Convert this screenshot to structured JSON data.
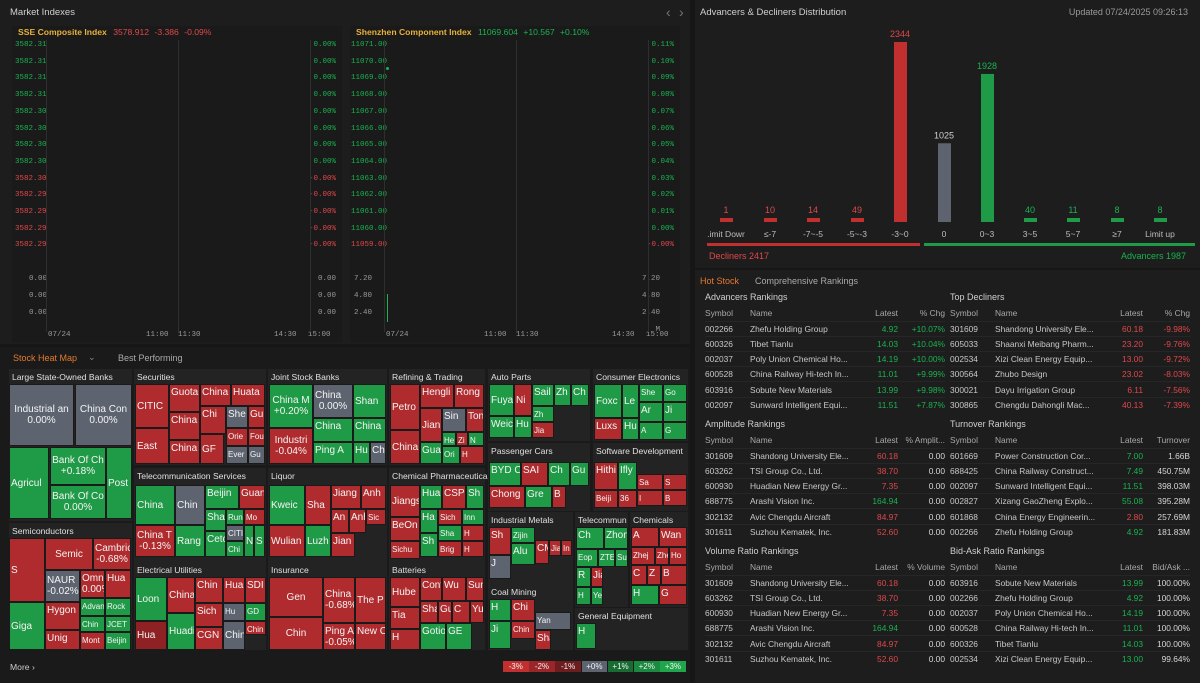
{
  "header": {
    "title": "Market Indexes",
    "nav_prev": "‹",
    "nav_next": "›"
  },
  "sse": {
    "name": "SSE Composite Index",
    "value": "3578.912",
    "change": "-3.386",
    "pct": "-0.09%",
    "y_left": [
      "3582.31",
      "3582.31",
      "3582.31",
      "3582.31",
      "3582.30",
      "3582.30",
      "3582.30",
      "3582.30",
      "3582.30",
      "3582.29",
      "3582.29",
      "3582.29",
      "3582.29"
    ],
    "y_right": [
      "0.00%",
      "0.00%",
      "0.00%",
      "0.00%",
      "0.00%",
      "0.00%",
      "0.00%",
      "0.00%",
      "-0.00%",
      "-0.00%",
      "-0.00%",
      "-0.00%",
      "-0.00%"
    ],
    "vol_left": [
      "0.00",
      "0.00",
      "0.00"
    ],
    "vol_right": [
      "0.00",
      "0.00",
      "0.00"
    ],
    "x": [
      "07/24",
      "11:00",
      "11:30",
      "14:30",
      "15:00"
    ]
  },
  "szse": {
    "name": "Shenzhen Component Index",
    "value": "11069.604",
    "change": "+10.567",
    "pct": "+0.10%",
    "y_left": [
      "11071.00",
      "11070.00",
      "11069.00",
      "11068.00",
      "11067.00",
      "11066.00",
      "11065.00",
      "11064.00",
      "11063.00",
      "11062.00",
      "11061.00",
      "11060.00",
      "11059.00"
    ],
    "y_right": [
      "0.11%",
      "0.10%",
      "0.09%",
      "0.08%",
      "0.07%",
      "0.06%",
      "0.05%",
      "0.04%",
      "0.03%",
      "0.02%",
      "0.01%",
      "0.00%",
      "-0.00%"
    ],
    "vol_left": [
      "7.20",
      "4.80",
      "2.40"
    ],
    "vol_right": [
      "7.20",
      "4.80",
      "2.40",
      "M"
    ],
    "x": [
      "07/24",
      "11:00",
      "11:30",
      "14:30",
      "15:00"
    ]
  },
  "distribution": {
    "title": "Advancers & Decliners Distribution",
    "updated": "Updated 07/24/2025 09:26:13",
    "decliners": "Decliners 2417",
    "advancers": "Advancers 1987",
    "colors": {
      "down": "#c1302f",
      "flat": "#5d6470",
      "up": "#1f9a46"
    }
  },
  "chart_data": {
    "type": "bar",
    "categories": [
      ".imit Dowr",
      "≤-7",
      "-7~-5",
      "-5~-3",
      "-3~0",
      "0",
      "0~3",
      "3~5",
      "5~7",
      "≥7",
      "Limit up"
    ],
    "values": [
      1,
      10,
      14,
      49,
      2344,
      1025,
      1928,
      40,
      11,
      8,
      8
    ]
  },
  "hot": {
    "tab1": "Hot Stock",
    "tab2": "Comprehensive Rankings"
  },
  "rankings": [
    {
      "title": "Advancers Rankings",
      "cols": [
        "Symbol",
        "Name",
        "Latest",
        "% Chg"
      ],
      "rows": [
        [
          "002266",
          "Zhefu Holding Group",
          "4.92",
          "+10.07%"
        ],
        [
          "600326",
          "Tibet Tianlu",
          "14.03",
          "+10.04%"
        ],
        [
          "002037",
          "Poly Union Chemical Ho...",
          "14.19",
          "+10.00%"
        ],
        [
          "600528",
          "China Railway Hi-tech In...",
          "11.01",
          "+9.99%"
        ],
        [
          "603916",
          "Sobute New Materials",
          "13.99",
          "+9.98%"
        ],
        [
          "002097",
          "Sunward Intelligent Equi...",
          "11.51",
          "+7.87%"
        ]
      ]
    },
    {
      "title": "Top Decliners",
      "cols": [
        "Symbol",
        "Name",
        "Latest",
        "% Chg"
      ],
      "rows": [
        [
          "301609",
          "Shandong University Ele...",
          "60.18",
          "-9.98%"
        ],
        [
          "605033",
          "Shaanxi Meibang Pharm...",
          "23.20",
          "-9.76%"
        ],
        [
          "002534",
          "Xizi Clean Energy Equip...",
          "13.00",
          "-9.72%"
        ],
        [
          "300564",
          "Zhubo Design",
          "23.02",
          "-8.03%"
        ],
        [
          "300021",
          "Dayu Irrigation Group",
          "6.11",
          "-7.56%"
        ],
        [
          "300865",
          "Chengdu Dahongli Mac...",
          "40.13",
          "-7.39%"
        ]
      ]
    },
    {
      "title": "Amplitude Rankings",
      "cols": [
        "Symbol",
        "Name",
        "Latest",
        "% Amplit..."
      ],
      "rows": [
        [
          "301609",
          "Shandong University Ele...",
          "60.18",
          "0.00"
        ],
        [
          "603262",
          "TSI Group Co., Ltd.",
          "38.70",
          "0.00"
        ],
        [
          "600930",
          "Huadian New Energy Gr...",
          "7.35",
          "0.00"
        ],
        [
          "688775",
          "Arashi Vision Inc.",
          "164.94",
          "0.00"
        ],
        [
          "302132",
          "Avic Chengdu Aircraft",
          "84.97",
          "0.00"
        ],
        [
          "301611",
          "Suzhou Kematek, Inc.",
          "52.60",
          "0.00"
        ]
      ]
    },
    {
      "title": "Turnover Rankings",
      "cols": [
        "Symbol",
        "Name",
        "Latest",
        "Turnover"
      ],
      "rows": [
        [
          "601669",
          "Power Construction Cor...",
          "7.00",
          "1.66B"
        ],
        [
          "688425",
          "China Railway Construct...",
          "7.49",
          "450.75M"
        ],
        [
          "002097",
          "Sunward Intelligent Equi...",
          "11.51",
          "398.03M"
        ],
        [
          "002827",
          "Xizang GaoZheng Explo...",
          "55.08",
          "395.28M"
        ],
        [
          "601868",
          "China Energy Engineerin...",
          "2.80",
          "257.69M"
        ],
        [
          "002266",
          "Zhefu Holding Group",
          "4.92",
          "181.83M"
        ]
      ]
    },
    {
      "title": "Volume Ratio Rankings",
      "cols": [
        "Symbol",
        "Name",
        "Latest",
        "% Volume"
      ],
      "rows": [
        [
          "301609",
          "Shandong University Ele...",
          "60.18",
          "0.00"
        ],
        [
          "603262",
          "TSI Group Co., Ltd.",
          "38.70",
          "0.00"
        ],
        [
          "600930",
          "Huadian New Energy Gr...",
          "7.35",
          "0.00"
        ],
        [
          "688775",
          "Arashi Vision Inc.",
          "164.94",
          "0.00"
        ],
        [
          "302132",
          "Avic Chengdu Aircraft",
          "84.97",
          "0.00"
        ],
        [
          "301611",
          "Suzhou Kematek, Inc.",
          "52.60",
          "0.00"
        ]
      ]
    },
    {
      "title": "Bid-Ask Ratio Rankings",
      "cols": [
        "Symbol",
        "Name",
        "Latest",
        "Bid/Ask ..."
      ],
      "rows": [
        [
          "603916",
          "Sobute New Materials",
          "13.99",
          "100.00%"
        ],
        [
          "002266",
          "Zhefu Holding Group",
          "4.92",
          "100.00%"
        ],
        [
          "002037",
          "Poly Union Chemical Ho...",
          "14.19",
          "100.00%"
        ],
        [
          "600528",
          "China Railway Hi-tech In...",
          "11.01",
          "100.00%"
        ],
        [
          "600326",
          "Tibet Tianlu",
          "14.03",
          "100.00%"
        ],
        [
          "002534",
          "Xizi Clean Energy Equip...",
          "13.00",
          "99.64%"
        ]
      ]
    }
  ],
  "heatmap": {
    "tab1": "Stock Heat Map",
    "tab2": "Best Performing",
    "more": "More",
    "legend": [
      "-3%",
      "-2%",
      "-1%",
      "+0%",
      "+1%",
      "+2%",
      "+3%"
    ],
    "sectors": [
      "Large State-Owned Banks",
      "Securities",
      "Joint Stock Banks",
      "Refining & Trading",
      "Auto Parts",
      "Consumer Electronics",
      "Telecommunication Services",
      "Liquor",
      "Chemical Pharmaceutica",
      "Passenger Cars",
      "Software Development",
      "Semiconductors",
      "Electrical Utilities",
      "Insurance",
      "Batteries",
      "Industrial Metals",
      "Telecommun",
      "Chemicals",
      "Coal Mining",
      "General Equipment"
    ],
    "tiles": [
      [
        "Industrial an",
        "0.00%"
      ],
      [
        "China Con",
        "0.00%"
      ],
      [
        "Agricul",
        ""
      ],
      [
        "Bank Of Ch",
        "+0.18%"
      ],
      [
        "Post",
        ""
      ],
      [
        "Bank Of Co",
        "0.00%"
      ],
      [
        "CITIC",
        ""
      ],
      [
        "Guota",
        ""
      ],
      [
        "China",
        ""
      ],
      [
        "Huata",
        ""
      ],
      [
        "China",
        ""
      ],
      [
        "Chi",
        ""
      ],
      [
        "She",
        ""
      ],
      [
        "Gu",
        ""
      ],
      [
        "East",
        ""
      ],
      [
        "China",
        ""
      ],
      [
        "GF",
        ""
      ],
      [
        "Orie",
        ""
      ],
      [
        "Fou",
        ""
      ],
      [
        "Ever",
        ""
      ],
      [
        "Gu",
        ""
      ],
      [
        "China M",
        "+0.20%"
      ],
      [
        "China",
        "0.00%"
      ],
      [
        "Shan",
        ""
      ],
      [
        "Industri",
        "-0.04%"
      ],
      [
        "China",
        ""
      ],
      [
        "China",
        ""
      ],
      [
        "Ping A",
        ""
      ],
      [
        "Hu",
        ""
      ],
      [
        "Chi",
        ""
      ],
      [
        "Petro",
        ""
      ],
      [
        "Hengli",
        ""
      ],
      [
        "Rong",
        ""
      ],
      [
        "Jian",
        ""
      ],
      [
        "Sin",
        ""
      ],
      [
        "Ton",
        ""
      ],
      [
        "China",
        ""
      ],
      [
        "He",
        ""
      ],
      [
        "Zi",
        ""
      ],
      [
        "N",
        ""
      ],
      [
        "Gua",
        ""
      ],
      [
        "Ori",
        ""
      ],
      [
        "H",
        ""
      ],
      [
        "Fuya",
        ""
      ],
      [
        "Ni",
        ""
      ],
      [
        "Sail",
        ""
      ],
      [
        "Zh",
        ""
      ],
      [
        "Ch",
        ""
      ],
      [
        "Zh",
        ""
      ],
      [
        "Weic",
        ""
      ],
      [
        "Hu",
        ""
      ],
      [
        "Jia",
        ""
      ],
      [
        "Foxc",
        ""
      ],
      [
        "Le",
        ""
      ],
      [
        "She",
        ""
      ],
      [
        "Go",
        ""
      ],
      [
        "Ar",
        ""
      ],
      [
        "Luxs",
        ""
      ],
      [
        "Hu",
        ""
      ],
      [
        "A",
        ""
      ],
      [
        "Ji",
        ""
      ],
      [
        "G",
        ""
      ],
      [
        "China",
        ""
      ],
      [
        "Chin",
        ""
      ],
      [
        "Beijin",
        ""
      ],
      [
        "Guan",
        ""
      ],
      [
        "Sha",
        ""
      ],
      [
        "RunJ",
        ""
      ],
      [
        "Mo",
        ""
      ],
      [
        "China T",
        "-0.13%"
      ],
      [
        "Rang",
        ""
      ],
      [
        "Cetc",
        ""
      ],
      [
        "CITI",
        ""
      ],
      [
        "Chi",
        ""
      ],
      [
        "N",
        ""
      ],
      [
        "S",
        ""
      ],
      [
        "Kweic",
        ""
      ],
      [
        "Sha",
        ""
      ],
      [
        "Jiang",
        ""
      ],
      [
        "Anh",
        ""
      ],
      [
        "An",
        ""
      ],
      [
        "Anh",
        ""
      ],
      [
        "Sic",
        ""
      ],
      [
        "Wulian",
        ""
      ],
      [
        "Luzh",
        ""
      ],
      [
        "Jian",
        ""
      ],
      [
        "Jiangs",
        ""
      ],
      [
        "Hua",
        ""
      ],
      [
        "CSP",
        ""
      ],
      [
        "Sh",
        ""
      ],
      [
        "BeOn",
        ""
      ],
      [
        "Ha",
        ""
      ],
      [
        "Sich",
        ""
      ],
      [
        "Inn",
        ""
      ],
      [
        "Sha",
        ""
      ],
      [
        "H",
        ""
      ],
      [
        "Sichu",
        ""
      ],
      [
        "Sh",
        ""
      ],
      [
        "Brig",
        ""
      ],
      [
        "H",
        ""
      ],
      [
        "BYD C",
        ""
      ],
      [
        "SAI",
        ""
      ],
      [
        "Ch",
        ""
      ],
      [
        "Gu",
        ""
      ],
      [
        "Chong",
        ""
      ],
      [
        "Gre",
        ""
      ],
      [
        "B",
        ""
      ],
      [
        "Hithi",
        ""
      ],
      [
        "Ifly",
        ""
      ],
      [
        "Sa",
        ""
      ],
      [
        "S",
        ""
      ],
      [
        "I",
        ""
      ],
      [
        "Beiji",
        ""
      ],
      [
        "36",
        ""
      ],
      [
        "B",
        ""
      ],
      [
        "S",
        ""
      ],
      [
        "Semic",
        ""
      ],
      [
        "Cambric",
        "-0.68%"
      ],
      [
        "NAUR",
        "-0.02%"
      ],
      [
        "Omni",
        "0.00%"
      ],
      [
        "Hua",
        ""
      ],
      [
        "Giga",
        ""
      ],
      [
        "Hygon",
        ""
      ],
      [
        "Advan",
        ""
      ],
      [
        "Rock",
        ""
      ],
      [
        "Chin",
        ""
      ],
      [
        "JCET",
        ""
      ],
      [
        "Unig",
        ""
      ],
      [
        "Mont",
        ""
      ],
      [
        "Beijin",
        ""
      ],
      [
        "Loon",
        ""
      ],
      [
        "China",
        ""
      ],
      [
        "Chin",
        ""
      ],
      [
        "Huan",
        ""
      ],
      [
        "SDI",
        ""
      ],
      [
        "Hu",
        ""
      ],
      [
        "GD",
        ""
      ],
      [
        "Sich",
        ""
      ],
      [
        "Chin",
        ""
      ],
      [
        "Hua",
        ""
      ],
      [
        "Huadi",
        ""
      ],
      [
        "CGN",
        ""
      ],
      [
        "Chin",
        ""
      ],
      [
        "Gen",
        ""
      ],
      [
        "China Life",
        "-0.68%"
      ],
      [
        "The P",
        ""
      ],
      [
        "Chin",
        ""
      ],
      [
        "Ping An I",
        "-0.05%"
      ],
      [
        "New C",
        ""
      ],
      [
        "Hube",
        ""
      ],
      [
        "Cont",
        ""
      ],
      [
        "Wu",
        ""
      ],
      [
        "Sun",
        ""
      ],
      [
        "Sha",
        ""
      ],
      [
        "Gu",
        ""
      ],
      [
        "C",
        ""
      ],
      [
        "Yu",
        ""
      ],
      [
        "Tia",
        ""
      ],
      [
        "Eve E",
        ""
      ],
      [
        "H",
        ""
      ],
      [
        "Gotio",
        ""
      ],
      [
        "GE",
        ""
      ],
      [
        "Sh",
        ""
      ],
      [
        "Zijin",
        ""
      ],
      [
        "Alu",
        ""
      ],
      [
        "Jian",
        ""
      ],
      [
        "In",
        ""
      ],
      [
        "J",
        ""
      ],
      [
        "CM",
        ""
      ],
      [
        "Ch",
        ""
      ],
      [
        "Zhon",
        ""
      ],
      [
        "Eop",
        ""
      ],
      [
        "ZTE",
        ""
      ],
      [
        "Su",
        ""
      ],
      [
        "R",
        ""
      ],
      [
        "Jia",
        ""
      ],
      [
        "H",
        ""
      ],
      [
        "Ye",
        ""
      ],
      [
        "A",
        ""
      ],
      [
        "Wan",
        ""
      ],
      [
        "Zhej",
        ""
      ],
      [
        "Zhe",
        ""
      ],
      [
        "Ho",
        ""
      ],
      [
        "C",
        ""
      ],
      [
        "Z",
        ""
      ],
      [
        "B",
        ""
      ],
      [
        "H",
        ""
      ],
      [
        "G",
        ""
      ],
      [
        "H",
        ""
      ],
      [
        "Chi",
        ""
      ],
      [
        "Chin",
        ""
      ],
      [
        "Yan",
        ""
      ],
      [
        "Ji",
        ""
      ],
      [
        "Sha",
        ""
      ],
      [
        "H",
        ""
      ],
      [
        "C",
        ""
      ]
    ]
  }
}
